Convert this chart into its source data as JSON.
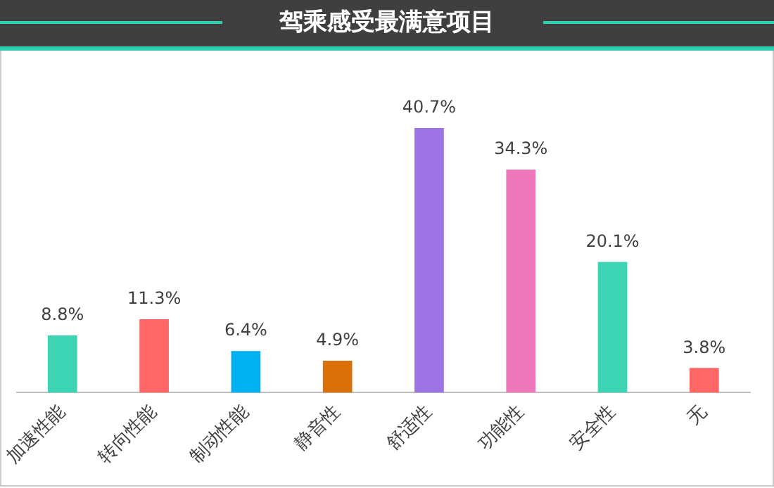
{
  "chart_data": {
    "type": "bar",
    "title": "驾乘感受最满意项目",
    "categories": [
      "加速性能",
      "转向性能",
      "制动性能",
      "静音性",
      "舒适性",
      "功能性",
      "安全性",
      "无"
    ],
    "values": [
      8.8,
      11.3,
      6.4,
      4.9,
      40.7,
      34.3,
      20.1,
      3.8
    ],
    "colors": [
      "#3dd4b4",
      "#ff6666",
      "#00b0f0",
      "#d97008",
      "#9c74e4",
      "#ee77bb",
      "#3dd4b4",
      "#ff6666"
    ],
    "value_labels": [
      "8.8%",
      "11.3%",
      "6.4%",
      "4.9%",
      "40.7%",
      "34.3%",
      "20.1%",
      "3.8%"
    ],
    "grid": false,
    "legend": false
  }
}
